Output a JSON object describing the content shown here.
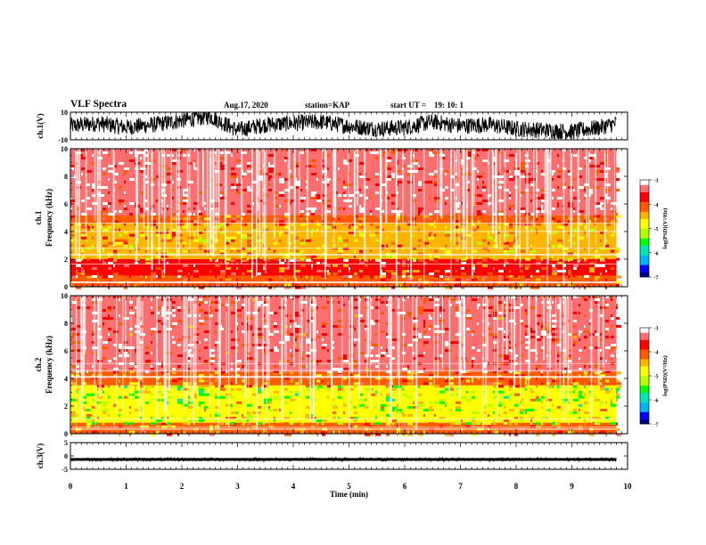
{
  "header": {
    "title": "VLF Spectra",
    "date": "Aug.17, 2020",
    "station_label": "station=",
    "station": "KAP",
    "start_label": "start  UT  =",
    "start_time": "19: 10: 1"
  },
  "colors": {
    "background": "#ffffff",
    "axis": "#000000",
    "trace": "#000000",
    "colormap": [
      "#00008b",
      "#0000ff",
      "#00b4ff",
      "#00e6b4",
      "#00ff00",
      "#b4ff00",
      "#ffff00",
      "#ffb400",
      "#ff5a00",
      "#ff0000",
      "#ff6e6e",
      "#ffffff"
    ]
  },
  "chart_data": [
    {
      "type": "line",
      "name": "ch1",
      "ylabel": "ch.1(V)",
      "ylim": [
        -10,
        10
      ],
      "ytick_labels": [
        "10",
        "-10"
      ],
      "xlim": [
        0,
        10
      ],
      "x_end": 9.8,
      "description_of_trace": "dense noisy waveform filling most of the range",
      "x": [
        0.0,
        0.5,
        1.0,
        1.5,
        2.0,
        2.5,
        3.0,
        3.5,
        4.0,
        4.5,
        5.0,
        5.5,
        6.0,
        6.5,
        7.0,
        7.5,
        8.0,
        8.5,
        9.0,
        9.5,
        9.8
      ],
      "y": [
        0,
        2,
        -1,
        1,
        4,
        7,
        -3,
        1,
        2,
        3,
        0,
        -2,
        -1,
        3,
        0,
        1,
        -2,
        -3,
        -4,
        -1,
        2
      ]
    },
    {
      "type": "heatmap",
      "name": "ch1-spectrogram",
      "ylabel_top": "ch.1",
      "ylabel": "Frequency  (kHz)",
      "ylim": [
        0,
        10
      ],
      "ytick_labels": [
        "0",
        "2",
        "4",
        "6",
        "8",
        "10"
      ],
      "xlim": [
        0,
        10
      ],
      "x_end": 9.8,
      "colorbar": {
        "label": "log(PSD)(V²/Hz)",
        "range": [
          -7,
          -3
        ],
        "tick_labels": [
          "-3",
          "-4",
          "-5",
          "-6",
          "-7"
        ]
      },
      "bands_kHz": [
        {
          "from": 0.0,
          "to": 0.8,
          "level": -4.0
        },
        {
          "from": 0.8,
          "to": 2.0,
          "level": -3.7
        },
        {
          "from": 2.0,
          "to": 4.6,
          "level": -4.5
        },
        {
          "from": 4.6,
          "to": 5.2,
          "level": -4.0
        },
        {
          "from": 5.2,
          "to": 10.0,
          "level": -3.4
        }
      ]
    },
    {
      "type": "heatmap",
      "name": "ch2-spectrogram",
      "ylabel_top": "ch.2",
      "ylabel": "Frequency  (kHz)",
      "ylim": [
        0,
        10
      ],
      "ytick_labels": [
        "0",
        "2",
        "4",
        "6",
        "8",
        "10"
      ],
      "xlim": [
        0,
        10
      ],
      "x_end": 9.8,
      "colorbar": {
        "label": "log(PSD)(V²/Hz)",
        "range": [
          -7,
          -3
        ],
        "tick_labels": [
          "-3",
          "-4",
          "-5",
          "-6",
          "-7"
        ]
      },
      "bands_kHz": [
        {
          "from": 0.0,
          "to": 0.8,
          "level": -4.2
        },
        {
          "from": 0.8,
          "to": 2.0,
          "level": -4.9
        },
        {
          "from": 2.0,
          "to": 3.5,
          "level": -5.0
        },
        {
          "from": 3.5,
          "to": 4.5,
          "level": -4.2
        },
        {
          "from": 4.5,
          "to": 10.0,
          "level": -3.5
        }
      ]
    },
    {
      "type": "line",
      "name": "ch3",
      "ylabel": "ch.3(V)",
      "ylim": [
        -5,
        5
      ],
      "ytick_labels": [
        "5",
        "0",
        "-5"
      ],
      "xlim": [
        0,
        10
      ],
      "x_end": 9.8,
      "x": [
        0.0,
        9.8
      ],
      "y": [
        -1.3,
        -1.3
      ],
      "band": [
        -1.8,
        -0.8
      ]
    }
  ],
  "xaxis": {
    "label": "Time  (min)",
    "tick_labels": [
      "0",
      "1",
      "2",
      "3",
      "4",
      "5",
      "6",
      "7",
      "8",
      "9",
      "10"
    ]
  }
}
